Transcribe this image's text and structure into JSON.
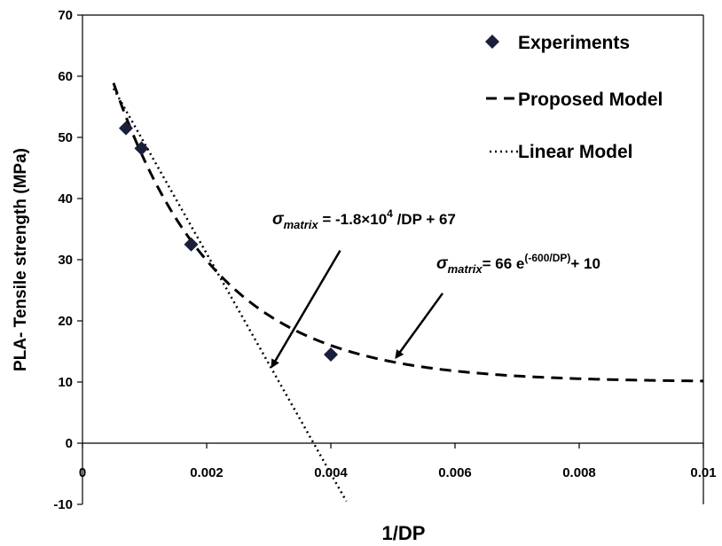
{
  "chart_data": {
    "type": "scatter",
    "xlabel": "1/DP",
    "ylabel": "PLA- Tensile strength (MPa)",
    "xlim": [
      0,
      0.01
    ],
    "ylim": [
      -10,
      70
    ],
    "x_ticks": [
      0,
      0.002,
      0.004,
      0.006,
      0.008,
      0.01
    ],
    "x_tick_labels": [
      "0",
      "0.002",
      "0.004",
      "0.006",
      "0.008",
      "0.01"
    ],
    "y_ticks": [
      -10,
      0,
      10,
      20,
      30,
      40,
      50,
      60,
      70
    ],
    "y_tick_labels": [
      "-10",
      "0",
      "10",
      "20",
      "30",
      "40",
      "50",
      "60",
      "70"
    ],
    "grid": false,
    "legend_position": "top-right",
    "series": [
      {
        "name": "Experiments",
        "kind": "markers",
        "marker": "diamond",
        "points": [
          {
            "x": 0.0007,
            "y": 51.5
          },
          {
            "x": 0.00095,
            "y": 48.2
          },
          {
            "x": 0.00175,
            "y": 32.5
          },
          {
            "x": 0.004,
            "y": 14.5
          }
        ]
      },
      {
        "name": "Proposed Model",
        "kind": "dashed-line",
        "formula": "66*exp(-600*x)+10",
        "x_range": [
          0.0005,
          0.01
        ]
      },
      {
        "name": "Linear Model",
        "kind": "dotted-line",
        "formula": "-18000*x+67",
        "x_range": [
          0.0005,
          0.00425
        ]
      }
    ],
    "annotations": {
      "linear": {
        "sigma": "σ",
        "sub": "matrix",
        "text": " = -1.8×10",
        "sup": "4",
        "tail": " /DP  + 67",
        "arrow_from": {
          "x": 0.00415,
          "y": 31.5
        },
        "arrow_to": {
          "x": 0.00305,
          "y": 12.5
        }
      },
      "proposed": {
        "sigma": "σ",
        "sub": "matrix",
        "text": "= 66 e",
        "sup": "(-600/DP)",
        "tail": "+ 10",
        "arrow_from": {
          "x": 0.0058,
          "y": 24.5
        },
        "arrow_to": {
          "x": 0.00505,
          "y": 14.0
        }
      }
    }
  }
}
